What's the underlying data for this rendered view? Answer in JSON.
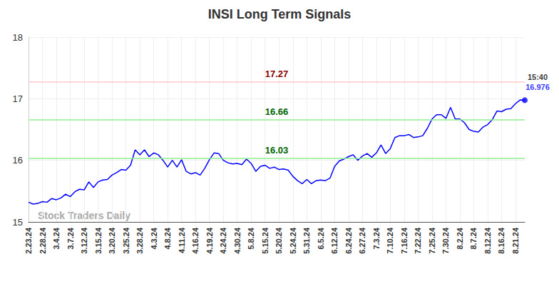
{
  "chart_data": {
    "type": "line",
    "title": "INSI Long Term Signals",
    "watermark": "Stock Traders Daily",
    "last_time": "15:40",
    "color": "#0000ff",
    "grid": true,
    "ylim": [
      15,
      18
    ],
    "yticks": [
      15,
      16,
      17,
      18
    ],
    "levels": [
      {
        "value": 17.27,
        "color": "#ffc8c8",
        "label_color": "#8b0000"
      },
      {
        "value": 16.66,
        "color": "#90ee90",
        "label_color": "#006400"
      },
      {
        "value": 16.03,
        "color": "#90ee90",
        "label_color": "#006400"
      }
    ],
    "categories": [
      "2.23.24",
      null,
      null,
      "2.28.24",
      null,
      null,
      "3.4.24",
      null,
      null,
      "3.7.24",
      null,
      null,
      "3.12.24",
      null,
      null,
      "3.15.24",
      null,
      null,
      "3.20.24",
      null,
      null,
      "3.25.24",
      null,
      null,
      "3.28.24",
      null,
      null,
      "4.3.24",
      null,
      null,
      "4.8.24",
      null,
      null,
      "4.11.24",
      null,
      null,
      "4.16.24",
      null,
      null,
      "4.19.24",
      null,
      null,
      "4.24.24",
      null,
      null,
      "4.30.24",
      null,
      null,
      "5.8.24",
      null,
      null,
      "5.15.24",
      null,
      null,
      "5.20.24",
      null,
      null,
      "5.24.24",
      null,
      null,
      "5.31.24",
      null,
      null,
      "6.5.24",
      null,
      null,
      "6.12.24",
      null,
      null,
      "6.24.24",
      null,
      null,
      "6.27.24",
      null,
      null,
      "7.3.24",
      null,
      null,
      "7.10.24",
      null,
      null,
      "7.16.24",
      null,
      null,
      "7.22.24",
      null,
      null,
      "7.25.24",
      null,
      null,
      "7.30.24",
      null,
      null,
      "8.2.24",
      null,
      null,
      "8.7.24",
      null,
      null,
      "8.12.24",
      null,
      null,
      "8.16.24",
      null,
      null,
      "8.21.24",
      null,
      null
    ],
    "values": [
      15.32,
      15.29,
      15.3,
      15.33,
      15.32,
      15.38,
      15.36,
      15.39,
      15.45,
      15.41,
      15.49,
      15.53,
      15.52,
      15.65,
      15.56,
      15.65,
      15.68,
      15.69,
      15.76,
      15.8,
      15.85,
      15.84,
      15.92,
      16.17,
      16.09,
      16.17,
      16.06,
      16.12,
      16.09,
      16.0,
      15.89,
      16.0,
      15.89,
      16.01,
      15.82,
      15.78,
      15.8,
      15.76,
      15.87,
      16.01,
      16.12,
      16.11,
      16.0,
      15.96,
      15.94,
      15.95,
      15.93,
      16.02,
      15.95,
      15.82,
      15.9,
      15.92,
      15.87,
      15.89,
      15.85,
      15.86,
      15.84,
      15.74,
      15.67,
      15.62,
      15.69,
      15.62,
      15.67,
      15.68,
      15.67,
      15.71,
      15.9,
      15.99,
      16.02,
      16.06,
      16.09,
      16.0,
      16.07,
      16.11,
      16.05,
      16.12,
      16.25,
      16.11,
      16.19,
      16.37,
      16.4,
      16.4,
      16.42,
      16.37,
      16.38,
      16.4,
      16.52,
      16.67,
      16.74,
      16.74,
      16.68,
      16.86,
      16.67,
      16.67,
      16.61,
      16.5,
      16.47,
      16.46,
      16.54,
      16.58,
      16.66,
      16.8,
      16.79,
      16.83,
      16.84,
      16.92,
      16.98,
      16.976
    ]
  }
}
